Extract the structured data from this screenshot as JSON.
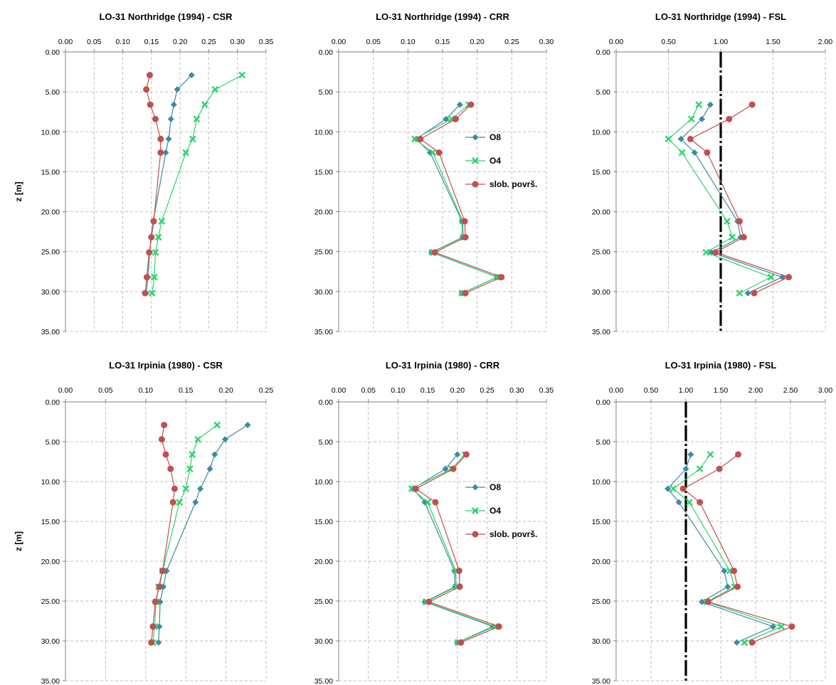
{
  "colors": {
    "O8": "#3e8aa4",
    "O4": "#2ed36b",
    "slob": "#c0504d",
    "grid": "#bfbfbf",
    "axis": "#808080",
    "fs1": "#000000"
  },
  "chart_data": [
    {
      "type": "line",
      "title": "LO-31  Northridge (1994) - CSR",
      "ylabel": "z [m]",
      "xlim": [
        0,
        0.35
      ],
      "ylim": [
        0,
        35
      ],
      "y_inverted": true,
      "x_axis_position": "top",
      "xticks": [
        "0.00",
        "0.05",
        "0.10",
        "0.15",
        "0.20",
        "0.25",
        "0.30",
        "0.35"
      ],
      "yticks": [
        "0.00",
        "5.00",
        "10.00",
        "15.00",
        "20.00",
        "25.00",
        "30.00",
        "35.00"
      ],
      "grid": true,
      "legend": null,
      "series": [
        {
          "name": "O8",
          "marker": "diamond",
          "points": [
            [
              0.22,
              2.9
            ],
            [
              0.195,
              4.7
            ],
            [
              0.189,
              6.6
            ],
            [
              0.184,
              8.4
            ],
            [
              0.18,
              10.9
            ],
            [
              0.175,
              12.6
            ],
            [
              0.153,
              21.2
            ],
            [
              0.149,
              23.2
            ],
            [
              0.147,
              25.1
            ],
            [
              0.144,
              28.2
            ],
            [
              0.141,
              30.2
            ]
          ]
        },
        {
          "name": "O4",
          "marker": "x",
          "points": [
            [
              0.308,
              2.9
            ],
            [
              0.261,
              4.7
            ],
            [
              0.243,
              6.6
            ],
            [
              0.229,
              8.4
            ],
            [
              0.222,
              10.9
            ],
            [
              0.21,
              12.6
            ],
            [
              0.168,
              21.2
            ],
            [
              0.162,
              23.2
            ],
            [
              0.157,
              25.1
            ],
            [
              0.155,
              28.2
            ],
            [
              0.151,
              30.2
            ]
          ]
        },
        {
          "name": "slob. površ.",
          "marker": "circle",
          "points": [
            [
              0.147,
              2.9
            ],
            [
              0.141,
              4.7
            ],
            [
              0.148,
              6.6
            ],
            [
              0.157,
              8.4
            ],
            [
              0.166,
              10.9
            ],
            [
              0.166,
              12.6
            ],
            [
              0.154,
              21.2
            ],
            [
              0.15,
              23.2
            ],
            [
              0.146,
              25.1
            ],
            [
              0.142,
              28.2
            ],
            [
              0.139,
              30.2
            ]
          ]
        }
      ]
    },
    {
      "type": "line",
      "title": "LO-31  Northridge (1994) - CRR",
      "xlim": [
        0,
        0.3
      ],
      "ylim": [
        0,
        35
      ],
      "y_inverted": true,
      "x_axis_position": "top",
      "xticks": [
        "0.00",
        "0.05",
        "0.10",
        "0.15",
        "0.20",
        "0.25",
        "0.30"
      ],
      "yticks": [
        "0.00",
        "5.00",
        "10.00",
        "15.00",
        "20.00",
        "25.00",
        "30.00",
        "35.00"
      ],
      "grid": true,
      "legend": "right",
      "series": [
        {
          "name": "O8",
          "marker": "diamond",
          "points": [
            [
              0.175,
              6.6
            ],
            [
              0.155,
              8.4
            ],
            [
              0.112,
              10.9
            ],
            [
              0.132,
              12.6
            ],
            [
              0.178,
              21.2
            ],
            [
              0.179,
              23.2
            ],
            [
              0.134,
              25.1
            ],
            [
              0.229,
              28.2
            ],
            [
              0.178,
              30.2
            ]
          ]
        },
        {
          "name": "O4",
          "marker": "x",
          "points": [
            [
              0.188,
              6.6
            ],
            [
              0.163,
              8.4
            ],
            [
              0.11,
              10.9
            ],
            [
              0.136,
              12.6
            ],
            [
              0.179,
              21.2
            ],
            [
              0.18,
              23.2
            ],
            [
              0.135,
              25.1
            ],
            [
              0.229,
              28.2
            ],
            [
              0.178,
              30.2
            ]
          ]
        },
        {
          "name": "slob. površ.",
          "marker": "circle",
          "points": [
            [
              0.191,
              6.6
            ],
            [
              0.169,
              8.4
            ],
            [
              0.118,
              10.9
            ],
            [
              0.145,
              12.6
            ],
            [
              0.182,
              21.2
            ],
            [
              0.183,
              23.2
            ],
            [
              0.139,
              25.1
            ],
            [
              0.235,
              28.2
            ],
            [
              0.183,
              30.2
            ]
          ]
        }
      ],
      "legend_labels": [
        "O8",
        "O4",
        "slob. površ."
      ]
    },
    {
      "type": "line",
      "title": "LO-31  Northridge (1994) - FSL",
      "xlim": [
        0,
        2
      ],
      "ylim": [
        0,
        35
      ],
      "y_inverted": true,
      "x_axis_position": "top",
      "xticks": [
        "0.00",
        "0.50",
        "1.00",
        "1.50",
        "2.00"
      ],
      "yticks": [
        "0.00",
        "5.00",
        "10.00",
        "15.00",
        "20.00",
        "25.00",
        "30.00",
        "35.00"
      ],
      "grid": true,
      "legend": null,
      "reference_line": {
        "x": 1.0
      },
      "series": [
        {
          "name": "O8",
          "marker": "diamond",
          "points": [
            [
              0.9,
              6.6
            ],
            [
              0.82,
              8.4
            ],
            [
              0.62,
              10.9
            ],
            [
              0.75,
              12.6
            ],
            [
              1.16,
              21.2
            ],
            [
              1.19,
              23.2
            ],
            [
              0.91,
              25.1
            ],
            [
              1.59,
              28.2
            ],
            [
              1.26,
              30.2
            ]
          ]
        },
        {
          "name": "O4",
          "marker": "x",
          "points": [
            [
              0.79,
              6.6
            ],
            [
              0.72,
              8.4
            ],
            [
              0.5,
              10.9
            ],
            [
              0.63,
              12.6
            ],
            [
              1.06,
              21.2
            ],
            [
              1.11,
              23.2
            ],
            [
              0.86,
              25.1
            ],
            [
              1.48,
              28.2
            ],
            [
              1.18,
              30.2
            ]
          ]
        },
        {
          "name": "slob. površ.",
          "marker": "circle",
          "points": [
            [
              1.3,
              6.6
            ],
            [
              1.08,
              8.4
            ],
            [
              0.71,
              10.9
            ],
            [
              0.87,
              12.6
            ],
            [
              1.18,
              21.2
            ],
            [
              1.22,
              23.2
            ],
            [
              0.95,
              25.1
            ],
            [
              1.65,
              28.2
            ],
            [
              1.32,
              30.2
            ]
          ]
        }
      ]
    },
    {
      "type": "line",
      "title": "LO-31  Irpinia (1980) - CSR",
      "ylabel": "z [m]",
      "xlim": [
        0,
        0.25
      ],
      "ylim": [
        0,
        35
      ],
      "y_inverted": true,
      "x_axis_position": "top",
      "xticks": [
        "0.00",
        "0.05",
        "0.10",
        "0.15",
        "0.20",
        "0.25"
      ],
      "yticks": [
        "0.00",
        "5.00",
        "10.00",
        "15.00",
        "20.00",
        "25.00",
        "30.00",
        "35.00"
      ],
      "grid": true,
      "legend": null,
      "series": [
        {
          "name": "O8",
          "marker": "diamond",
          "points": [
            [
              0.227,
              2.9
            ],
            [
              0.199,
              4.7
            ],
            [
              0.186,
              6.6
            ],
            [
              0.18,
              8.4
            ],
            [
              0.168,
              10.9
            ],
            [
              0.162,
              12.6
            ],
            [
              0.126,
              21.2
            ],
            [
              0.122,
              23.2
            ],
            [
              0.118,
              25.1
            ],
            [
              0.117,
              28.2
            ],
            [
              0.116,
              30.2
            ]
          ]
        },
        {
          "name": "O4",
          "marker": "x",
          "points": [
            [
              0.189,
              2.9
            ],
            [
              0.165,
              4.7
            ],
            [
              0.158,
              6.6
            ],
            [
              0.155,
              8.4
            ],
            [
              0.15,
              10.9
            ],
            [
              0.142,
              12.6
            ],
            [
              0.121,
              21.2
            ],
            [
              0.116,
              23.2
            ],
            [
              0.113,
              25.1
            ],
            [
              0.111,
              28.2
            ],
            [
              0.109,
              30.2
            ]
          ]
        },
        {
          "name": "slob. površ.",
          "marker": "circle",
          "points": [
            [
              0.123,
              2.9
            ],
            [
              0.12,
              4.7
            ],
            [
              0.125,
              6.6
            ],
            [
              0.131,
              8.4
            ],
            [
              0.136,
              10.9
            ],
            [
              0.134,
              12.6
            ],
            [
              0.121,
              21.2
            ],
            [
              0.117,
              23.2
            ],
            [
              0.112,
              25.1
            ],
            [
              0.109,
              28.2
            ],
            [
              0.107,
              30.2
            ]
          ]
        }
      ]
    },
    {
      "type": "line",
      "title": "LO-31  Irpinia (1980) - CRR",
      "xlim": [
        0,
        0.35
      ],
      "ylim": [
        0,
        35
      ],
      "y_inverted": true,
      "x_axis_position": "top",
      "xticks": [
        "0.00",
        "0.05",
        "0.10",
        "0.15",
        "0.20",
        "0.25",
        "0.30",
        "0.35"
      ],
      "yticks": [
        "0.00",
        "5.00",
        "10.00",
        "15.00",
        "20.00",
        "25.00",
        "30.00",
        "35.00"
      ],
      "grid": true,
      "legend": "right",
      "series": [
        {
          "name": "O8",
          "marker": "diamond",
          "points": [
            [
              0.2,
              6.6
            ],
            [
              0.18,
              8.4
            ],
            [
              0.125,
              10.9
            ],
            [
              0.145,
              12.6
            ],
            [
              0.195,
              21.2
            ],
            [
              0.196,
              23.2
            ],
            [
              0.145,
              25.1
            ],
            [
              0.26,
              28.2
            ],
            [
              0.2,
              30.2
            ]
          ]
        },
        {
          "name": "O4",
          "marker": "x",
          "points": [
            [
              0.213,
              6.6
            ],
            [
              0.19,
              8.4
            ],
            [
              0.123,
              10.9
            ],
            [
              0.15,
              12.6
            ],
            [
              0.197,
              21.2
            ],
            [
              0.198,
              23.2
            ],
            [
              0.147,
              25.1
            ],
            [
              0.263,
              28.2
            ],
            [
              0.201,
              30.2
            ]
          ]
        },
        {
          "name": "slob. površ.",
          "marker": "circle",
          "points": [
            [
              0.215,
              6.6
            ],
            [
              0.193,
              8.4
            ],
            [
              0.13,
              10.9
            ],
            [
              0.163,
              12.6
            ],
            [
              0.203,
              21.2
            ],
            [
              0.204,
              23.2
            ],
            [
              0.152,
              25.1
            ],
            [
              0.27,
              28.2
            ],
            [
              0.206,
              30.2
            ]
          ]
        }
      ],
      "legend_labels": [
        "O8",
        "O4",
        "slob. površ."
      ]
    },
    {
      "type": "line",
      "title": "LO-31  Irpinia (1980) - FSL",
      "xlim": [
        0,
        3
      ],
      "ylim": [
        0,
        35
      ],
      "y_inverted": true,
      "x_axis_position": "top",
      "xticks": [
        "0.00",
        "0.50",
        "1.00",
        "1.50",
        "2.00",
        "2.50",
        "3.00"
      ],
      "yticks": [
        "0.00",
        "5.00",
        "10.00",
        "15.00",
        "20.00",
        "25.00",
        "30.00",
        "35.00"
      ],
      "grid": true,
      "legend": null,
      "reference_line": {
        "x": 1.0
      },
      "series": [
        {
          "name": "O8",
          "marker": "diamond",
          "points": [
            [
              1.07,
              6.6
            ],
            [
              1.0,
              8.4
            ],
            [
              0.74,
              10.9
            ],
            [
              0.9,
              12.6
            ],
            [
              1.55,
              21.2
            ],
            [
              1.6,
              23.2
            ],
            [
              1.23,
              25.1
            ],
            [
              2.25,
              28.2
            ],
            [
              1.73,
              30.2
            ]
          ]
        },
        {
          "name": "O4",
          "marker": "x",
          "points": [
            [
              1.35,
              6.6
            ],
            [
              1.2,
              8.4
            ],
            [
              0.82,
              10.9
            ],
            [
              1.05,
              12.6
            ],
            [
              1.63,
              21.2
            ],
            [
              1.7,
              23.2
            ],
            [
              1.3,
              25.1
            ],
            [
              2.37,
              28.2
            ],
            [
              1.84,
              30.2
            ]
          ]
        },
        {
          "name": "slob. površ.",
          "marker": "circle",
          "points": [
            [
              1.75,
              6.6
            ],
            [
              1.48,
              8.4
            ],
            [
              0.96,
              10.9
            ],
            [
              1.2,
              12.6
            ],
            [
              1.69,
              21.2
            ],
            [
              1.74,
              23.2
            ],
            [
              1.32,
              25.1
            ],
            [
              2.52,
              28.2
            ],
            [
              1.95,
              30.2
            ]
          ]
        }
      ]
    }
  ]
}
